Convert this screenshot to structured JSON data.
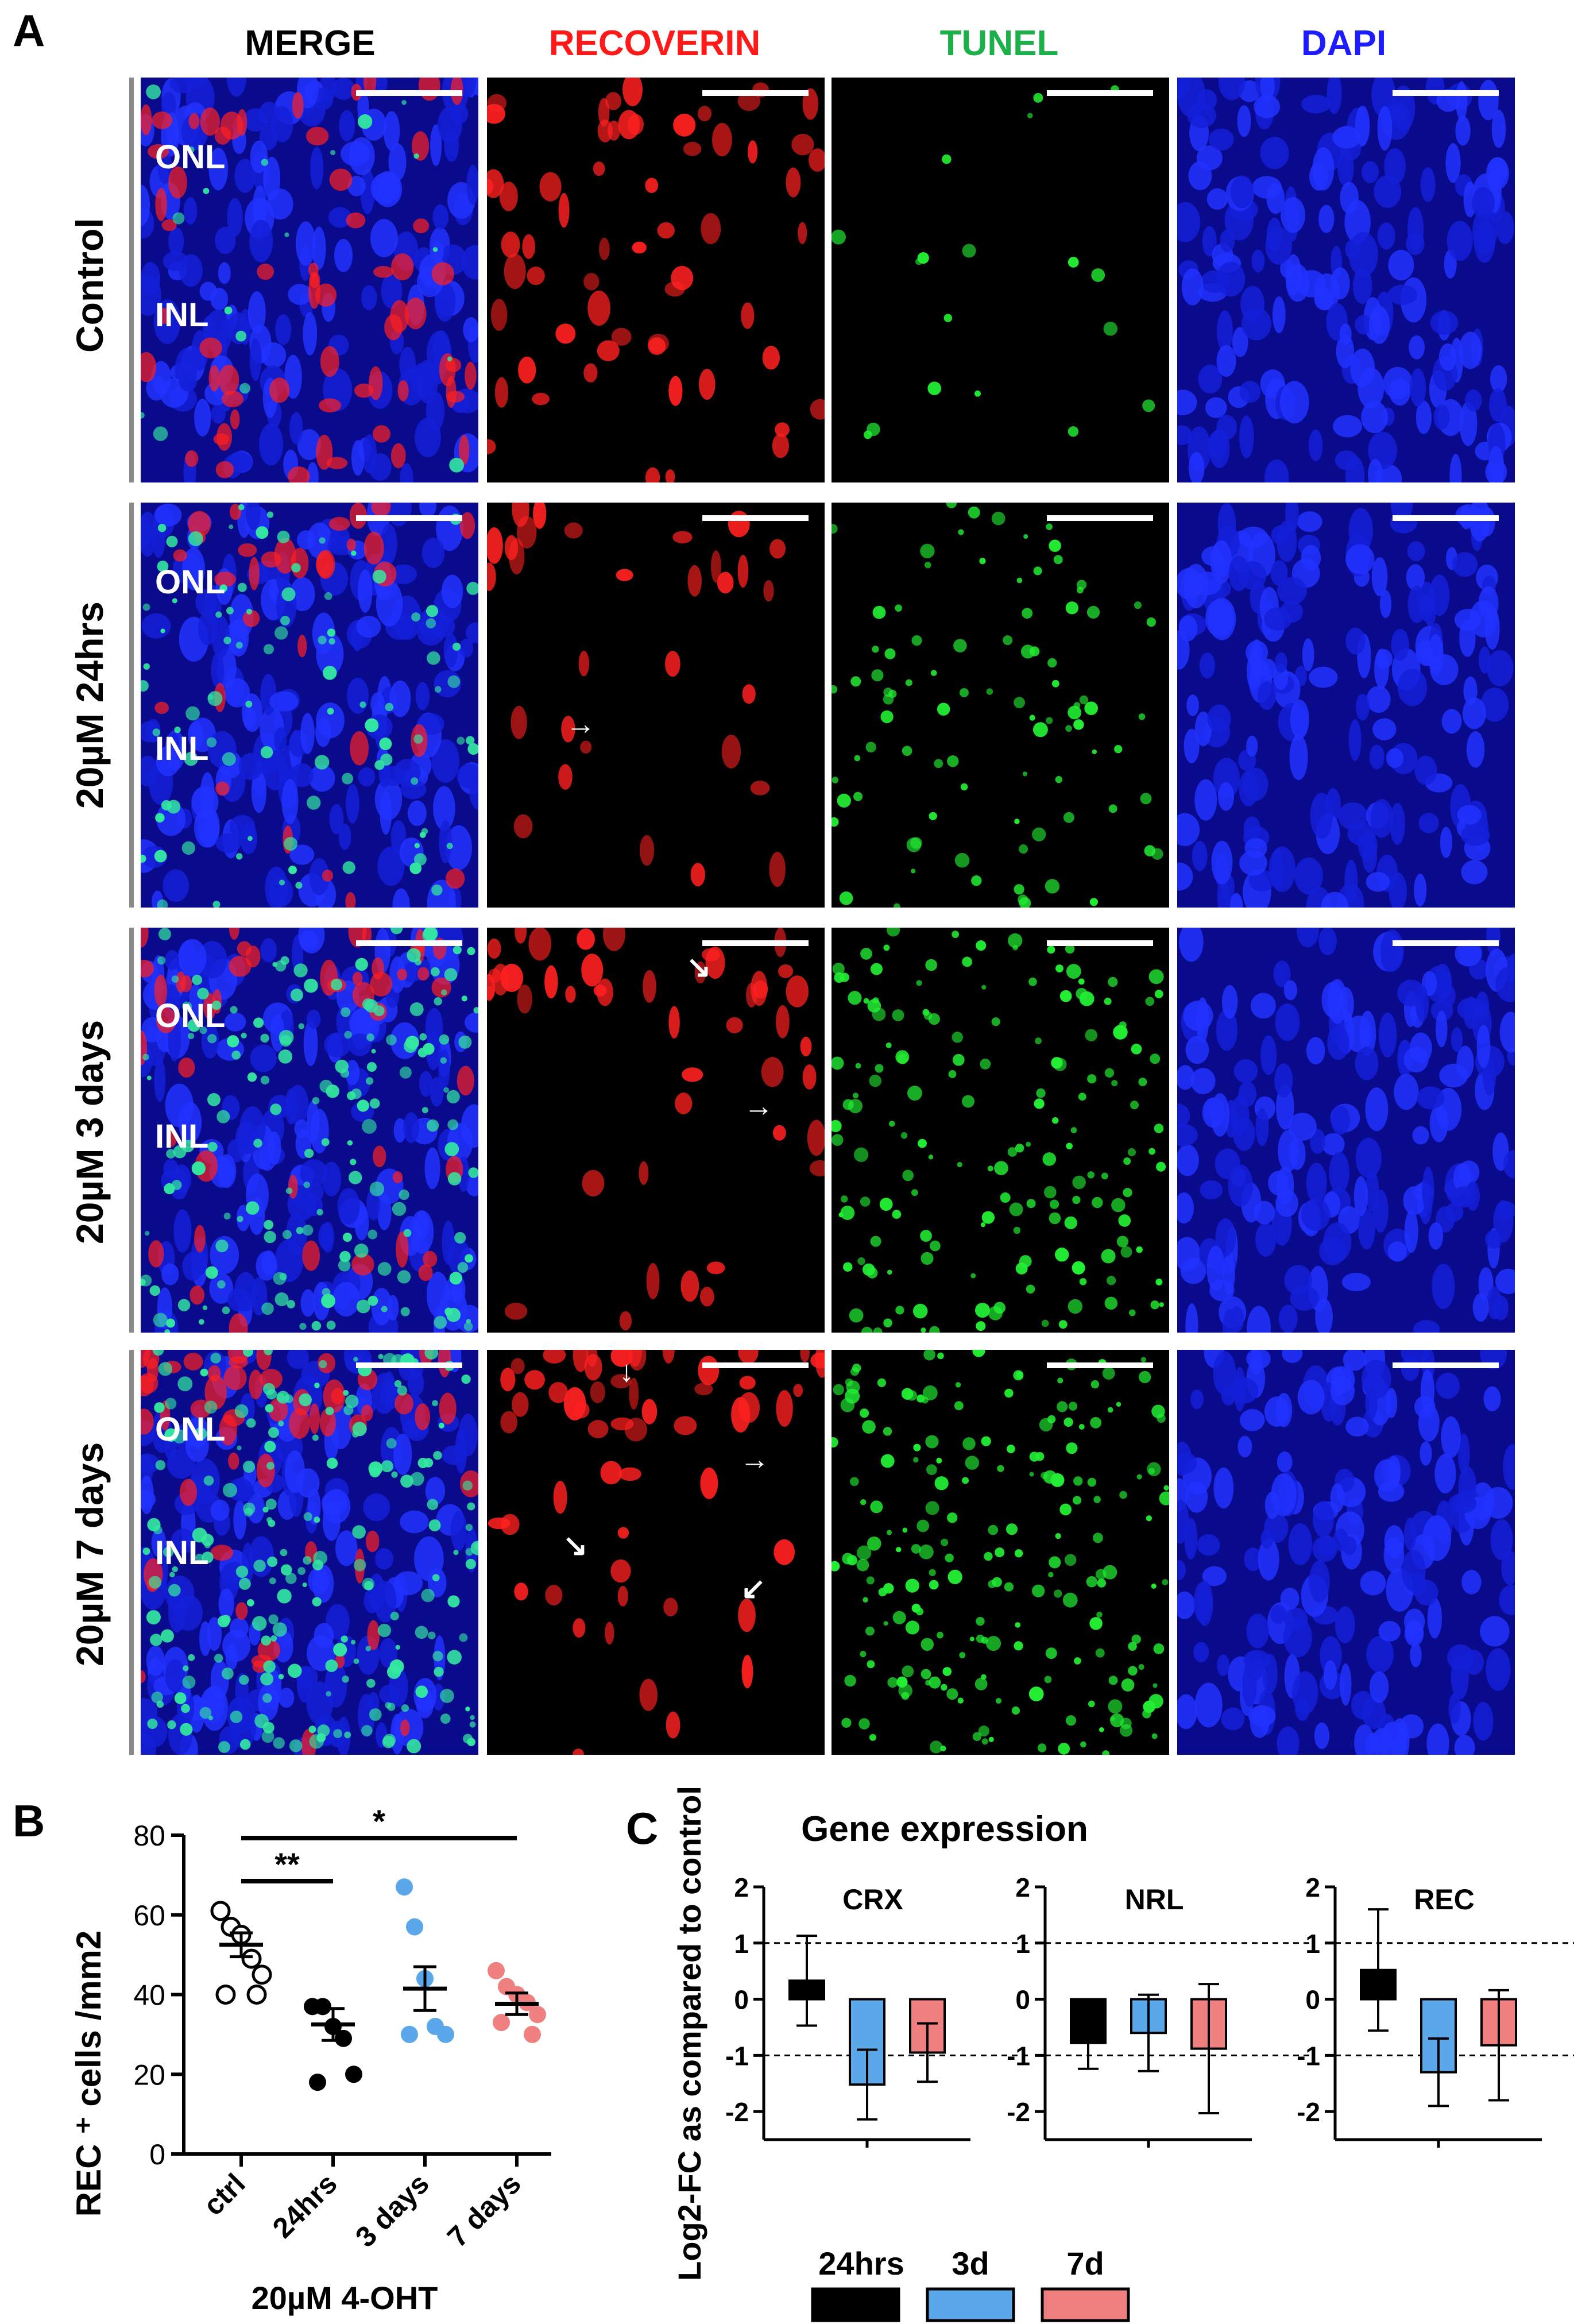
{
  "panel_a": {
    "letter": "A",
    "column_headers": [
      {
        "label": "MERGE",
        "color": "#000000"
      },
      {
        "label": "RECOVERIN",
        "color": "#ff1a1a"
      },
      {
        "label": "TUNEL",
        "color": "#1bb04a"
      },
      {
        "label": "DAPI",
        "color": "#1c1cff"
      }
    ],
    "rows": [
      {
        "label": "Control",
        "onl": "ONL",
        "inl": "INL"
      },
      {
        "label": "20µM 24hrs",
        "onl": "ONL",
        "inl": "INL"
      },
      {
        "label": "20µM 3 days",
        "onl": "ONL",
        "inl": "INL"
      },
      {
        "label": "20µM 7 days",
        "onl": "ONL",
        "inl": "INL"
      }
    ]
  },
  "panel_b": {
    "letter": "B",
    "chart_data": {
      "type": "scatter",
      "ylabel": "REC ⁺ cells /mm2",
      "xlabel": "20µM 4-OHT",
      "ylim": [
        0,
        80
      ],
      "yticks": [
        "0",
        "20",
        "40",
        "60",
        "80"
      ],
      "categories": [
        "ctrl",
        "24hrs",
        "3 days",
        "7 days"
      ],
      "colors": [
        "#ffffff",
        "#000000",
        "#5aa8ea",
        "#f08080"
      ],
      "points": [
        [
          61,
          57,
          55,
          49,
          45,
          40,
          40
        ],
        [
          37,
          37,
          32,
          29,
          20,
          18
        ],
        [
          67,
          57,
          44,
          32,
          30,
          30
        ],
        [
          46,
          42,
          40,
          38,
          35,
          33,
          30
        ]
      ],
      "means": [
        52.5,
        32.5,
        41.5,
        37.7
      ],
      "sem": [
        3.0,
        4.0,
        5.5,
        2.7
      ],
      "significance": [
        {
          "from": "ctrl",
          "to": "24hrs",
          "label": "**"
        },
        {
          "from": "ctrl",
          "to": "7 days",
          "label": "*"
        }
      ]
    }
  },
  "panel_c": {
    "letter": "C",
    "chart_data": {
      "type": "bar",
      "title": "Gene expression",
      "ylabel": "Log2-FC as compared to control",
      "ylim": [
        -2.5,
        2
      ],
      "yticks": [
        "2",
        "1",
        "0",
        "-1",
        "-2"
      ],
      "subplots": [
        {
          "title": "CRX",
          "values": [
            0.33,
            -1.52,
            -0.95
          ],
          "err": [
            0.8,
            0.62,
            0.52
          ]
        },
        {
          "title": "NRL",
          "values": [
            -0.78,
            -0.6,
            -0.88
          ],
          "err": [
            0.46,
            0.68,
            1.15
          ]
        },
        {
          "title": "REC",
          "values": [
            0.52,
            -1.3,
            -0.82
          ],
          "err": [
            1.08,
            0.6,
            0.98
          ]
        }
      ],
      "series": [
        {
          "name": "24hrs",
          "color": "#000000"
        },
        {
          "name": "3d",
          "color": "#5aa8ea"
        },
        {
          "name": "7d",
          "color": "#f08080"
        }
      ]
    }
  }
}
